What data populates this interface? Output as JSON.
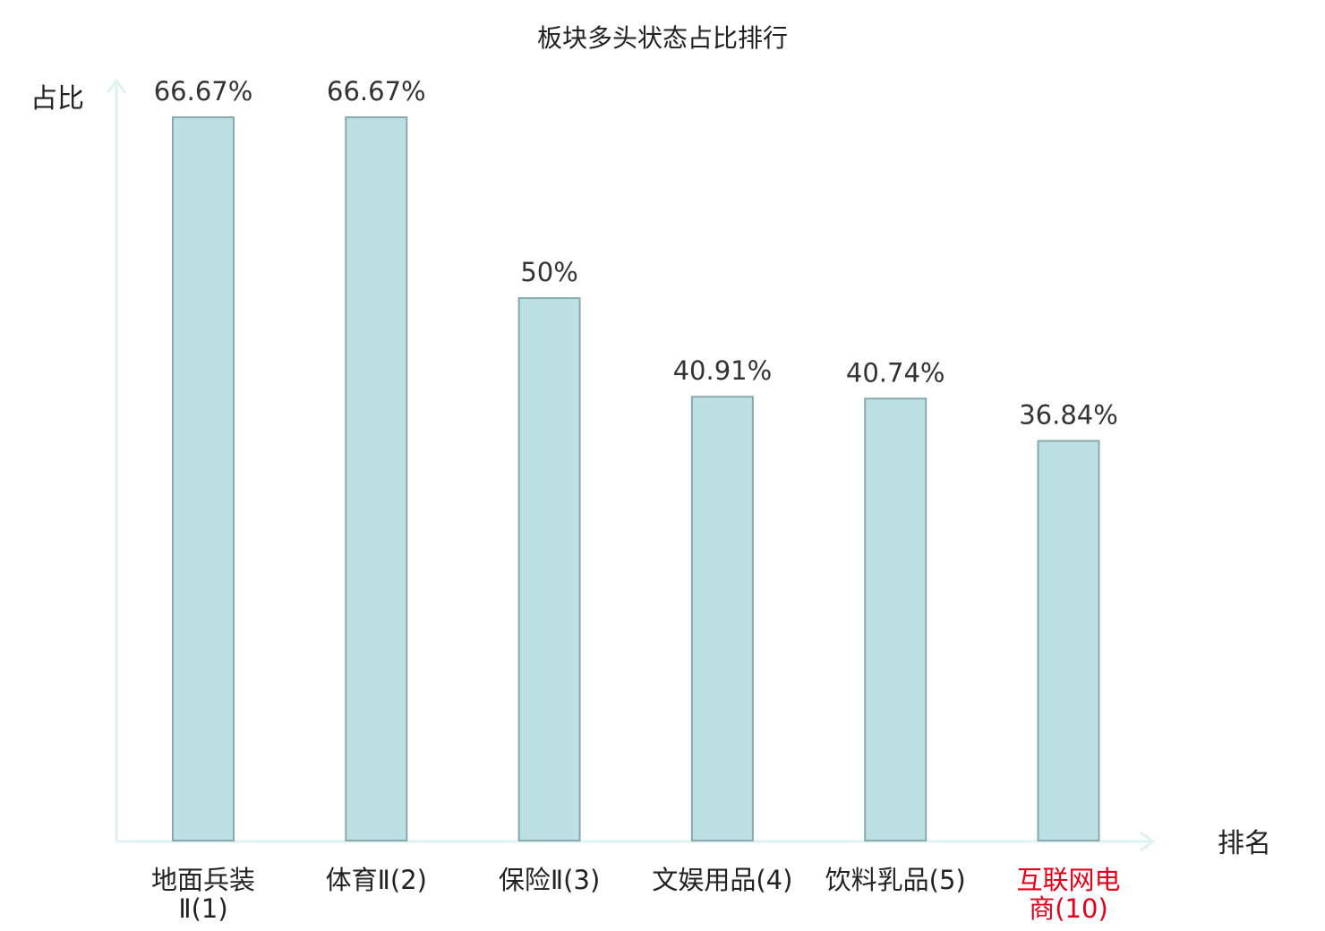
{
  "colors": {
    "bar_fill": "#bde0e3",
    "bar_stroke": "#8aa9ac",
    "axis": "#e0f2ef",
    "text": "#222222",
    "highlight": "#e3001b"
  },
  "chart_data": {
    "type": "bar",
    "title": "板块多头状态占比排行",
    "xlabel": "排名",
    "ylabel": "占比",
    "ylim": [
      0,
      70
    ],
    "grid": false,
    "value_suffix": "%",
    "categories": [
      [
        "地面兵装",
        "Ⅱ(1)"
      ],
      [
        "体育Ⅱ(2)"
      ],
      [
        "保险Ⅱ(3)"
      ],
      [
        "文娱用品(4)"
      ],
      [
        "饮料乳品(5)"
      ],
      [
        "互联网电",
        "商(10)"
      ]
    ],
    "values": [
      66.67,
      66.67,
      50,
      40.91,
      40.74,
      36.84
    ],
    "value_labels": [
      "66.67%",
      "66.67%",
      "50%",
      "40.91%",
      "40.74%",
      "36.84%"
    ],
    "highlight_index": 5
  }
}
